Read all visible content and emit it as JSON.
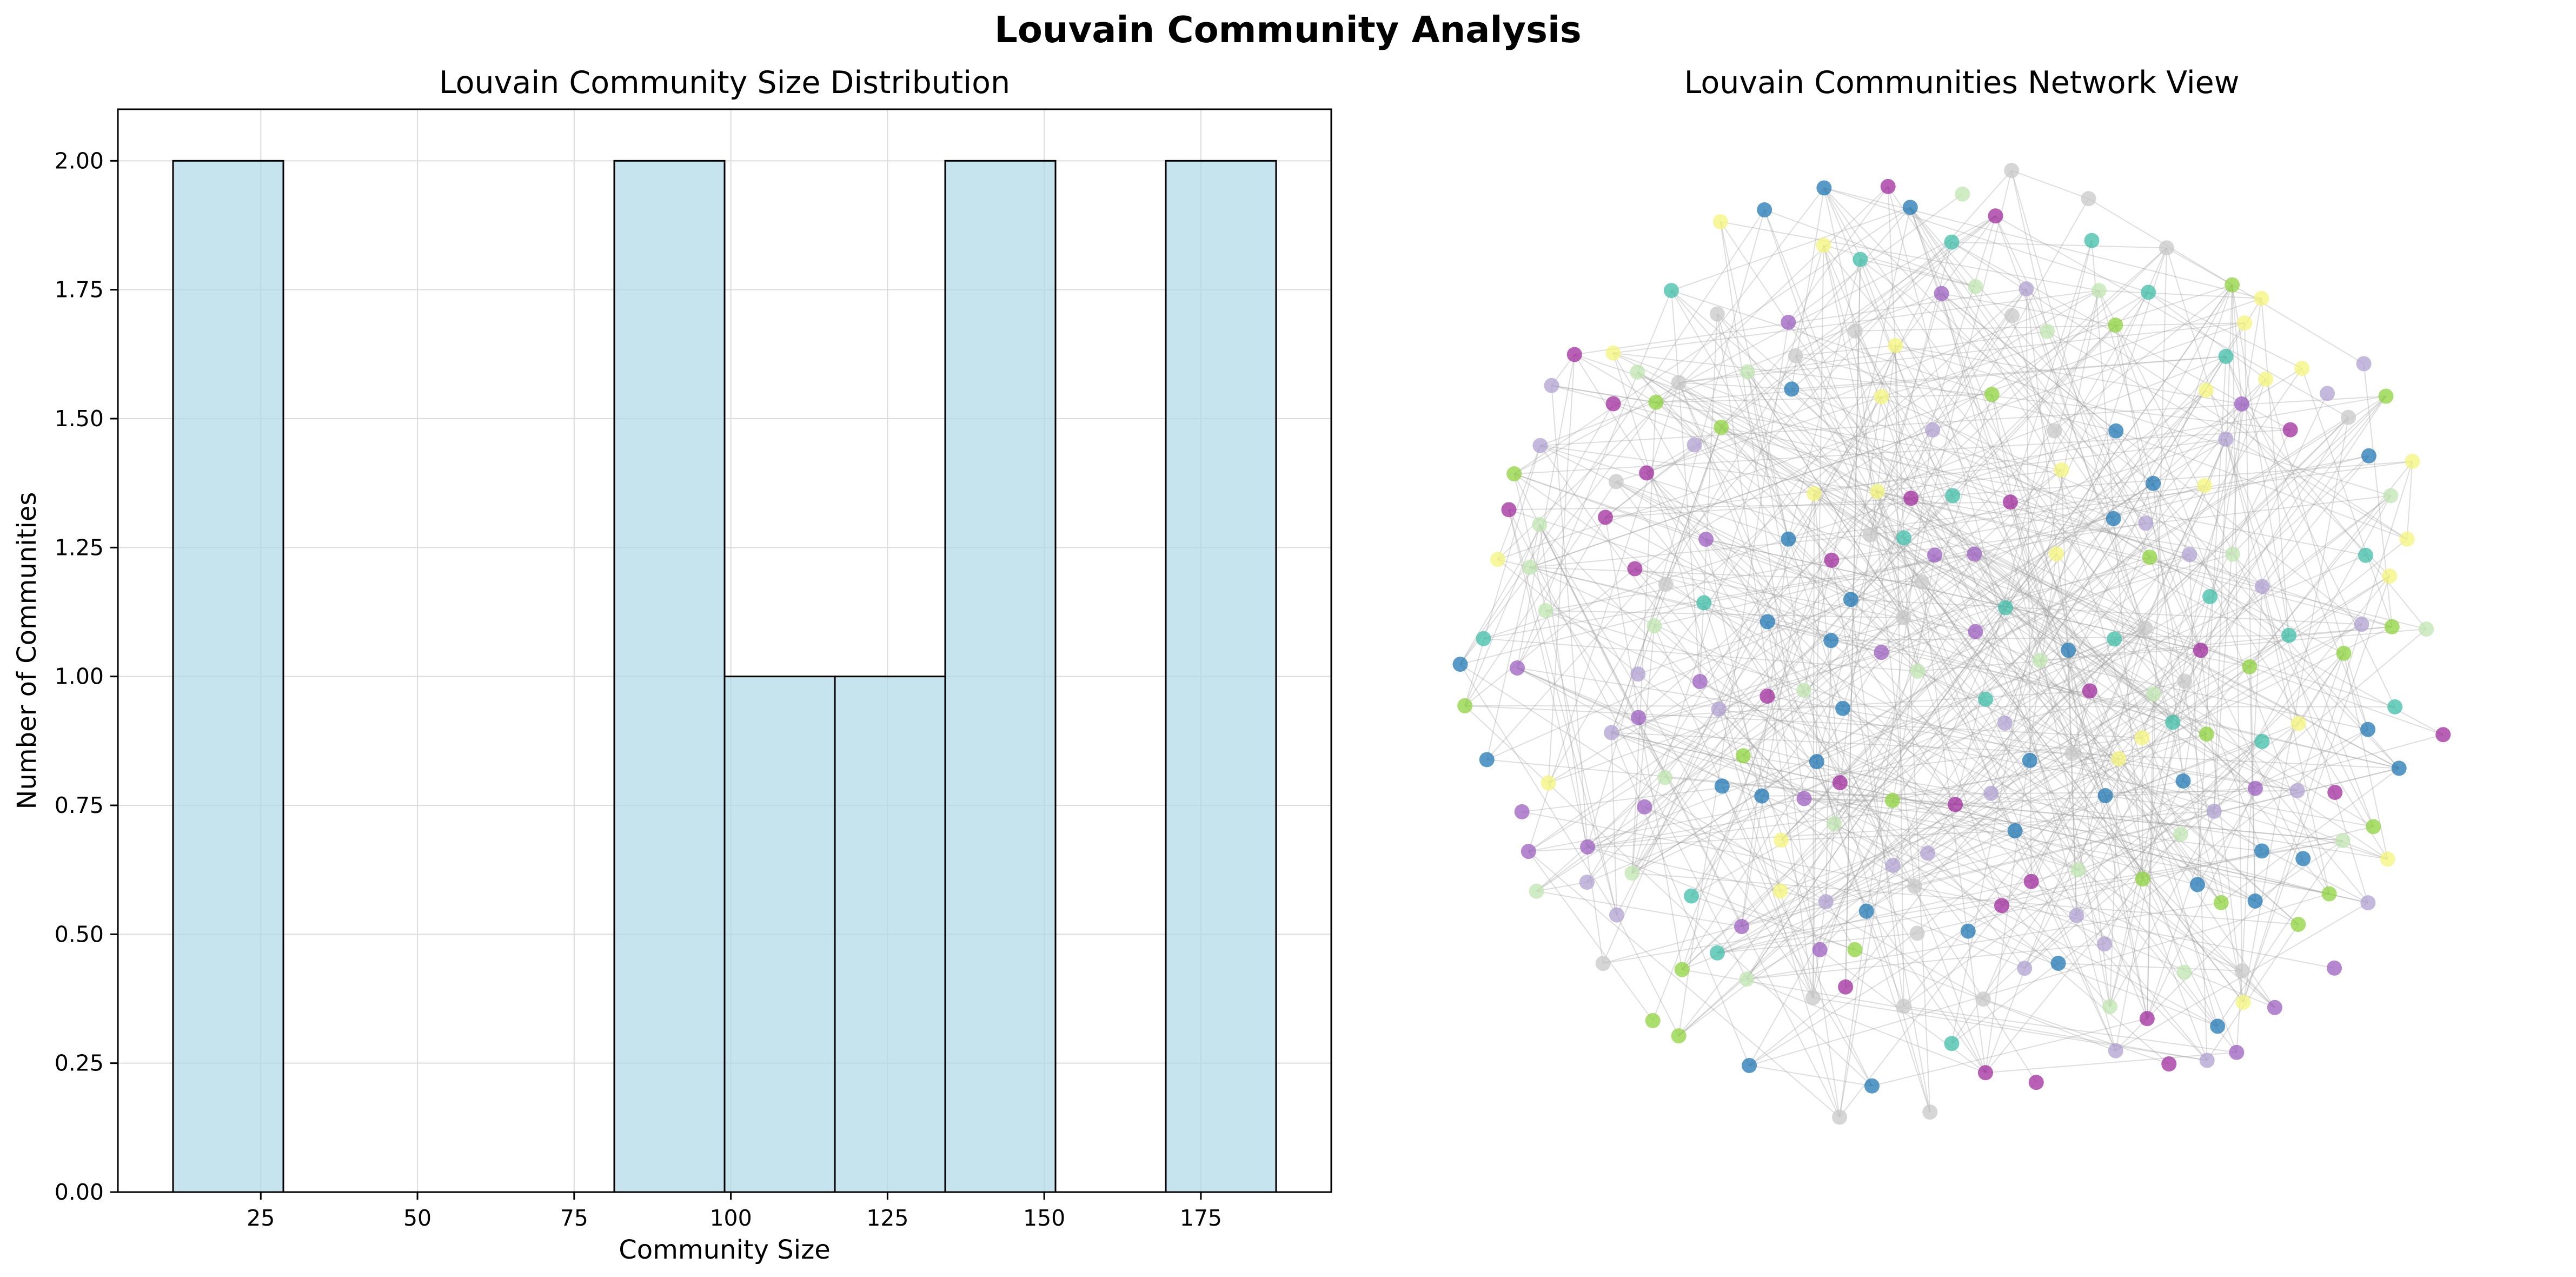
{
  "figure": {
    "title": "Louvain Community Analysis"
  },
  "chart_data": [
    {
      "type": "bar",
      "title": "Louvain Community Size Distribution",
      "xlabel": "Community Size",
      "ylabel": "Number of Communities",
      "bins": [
        {
          "x0": 11,
          "x1": 28.6,
          "count": 2
        },
        {
          "x0": 28.6,
          "x1": 46.2,
          "count": 0
        },
        {
          "x0": 46.2,
          "x1": 63.8,
          "count": 0
        },
        {
          "x0": 63.8,
          "x1": 81.4,
          "count": 0
        },
        {
          "x0": 81.4,
          "x1": 99,
          "count": 2
        },
        {
          "x0": 99,
          "x1": 116.6,
          "count": 1
        },
        {
          "x0": 116.6,
          "x1": 134.2,
          "count": 1
        },
        {
          "x0": 134.2,
          "x1": 151.8,
          "count": 2
        },
        {
          "x0": 151.8,
          "x1": 169.4,
          "count": 0
        },
        {
          "x0": 169.4,
          "x1": 187,
          "count": 2
        }
      ],
      "xlim": [
        2.2,
        195.8
      ],
      "ylim": [
        0,
        2.1
      ],
      "xticks": [
        25,
        50,
        75,
        100,
        125,
        150,
        175
      ],
      "xtick_labels": [
        "25",
        "50",
        "75",
        "100",
        "125",
        "150",
        "175"
      ],
      "yticks": [
        0,
        0.25,
        0.5,
        0.75,
        1.0,
        1.25,
        1.5,
        1.75,
        2.0
      ],
      "ytick_labels": [
        "0.00",
        "0.25",
        "0.50",
        "0.75",
        "1.00",
        "1.25",
        "1.50",
        "1.75",
        "2.00"
      ],
      "grid": true,
      "colors": {
        "bar_fill": "#add8e6",
        "bar_edge": "#000000"
      }
    },
    {
      "type": "scatter",
      "title": "Louvain Communities Network View",
      "description_type": "network",
      "node_count": 240,
      "axes_visible": false,
      "community_colors": [
        "#1f77b4",
        "#9b5fc0",
        "#b0a0d0",
        "#3fbfa8",
        "#8fd43c",
        "#c0e6b0",
        "#f4f47a",
        "#c8c8c8",
        "#a02a9e"
      ],
      "colors": {
        "edge": "#a0a0a0"
      }
    }
  ]
}
